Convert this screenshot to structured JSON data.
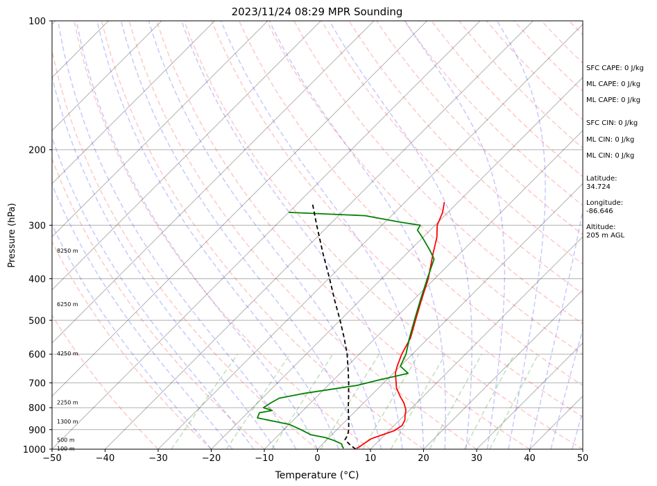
{
  "chart_data": {
    "type": "skew-t",
    "title": "2023/11/24 08:29 MPR Sounding",
    "xlabel": "Temperature (°C)",
    "ylabel": "Pressure (hPa)",
    "xlim": [
      -50,
      50
    ],
    "ylim": [
      1000,
      100
    ],
    "y_scale": "log",
    "x_ticks": [
      "−50",
      "−40",
      "−30",
      "−20",
      "−10",
      "0",
      "10",
      "20",
      "30",
      "40",
      "50"
    ],
    "x_tick_values": [
      -50,
      -40,
      -30,
      -20,
      -10,
      0,
      10,
      20,
      30,
      40,
      50
    ],
    "y_ticks": [
      "100",
      "200",
      "300",
      "400",
      "500",
      "600",
      "700",
      "800",
      "900",
      "1000"
    ],
    "y_tick_values": [
      100,
      200,
      300,
      400,
      500,
      600,
      700,
      800,
      900,
      1000
    ],
    "grid": "horizontal at pressure ticks",
    "height_labels": [
      {
        "text": "100 m",
        "p": 1000
      },
      {
        "text": "500 m",
        "p": 955
      },
      {
        "text": "1300 m",
        "p": 865
      },
      {
        "text": "2250 m",
        "p": 780
      },
      {
        "text": "4250 m",
        "p": 600
      },
      {
        "text": "6250 m",
        "p": 460
      },
      {
        "text": "8250 m",
        "p": 345
      }
    ],
    "series": [
      {
        "role": "temperature",
        "color": "#ff0000",
        "points": [
          [
            996,
            7.2
          ],
          [
            985,
            7.5
          ],
          [
            965,
            7.8
          ],
          [
            945,
            8.2
          ],
          [
            930,
            9.2
          ],
          [
            905,
            11.0
          ],
          [
            880,
            11.5
          ],
          [
            855,
            11.0
          ],
          [
            835,
            10.2
          ],
          [
            810,
            9.3
          ],
          [
            780,
            7.6
          ],
          [
            755,
            5.8
          ],
          [
            720,
            3.4
          ],
          [
            690,
            1.8
          ],
          [
            665,
            0.4
          ],
          [
            640,
            -0.6
          ],
          [
            600,
            -2.0
          ],
          [
            550,
            -3.4
          ],
          [
            500,
            -5.8
          ],
          [
            450,
            -8.4
          ],
          [
            400,
            -11.2
          ],
          [
            350,
            -15.0
          ],
          [
            320,
            -17.4
          ],
          [
            300,
            -19.6
          ],
          [
            280,
            -21.0
          ],
          [
            265,
            -22.6
          ]
        ]
      },
      {
        "role": "dewpoint",
        "color": "#008000",
        "points": [
          [
            996,
            4.8
          ],
          [
            982,
            4.0
          ],
          [
            972,
            3.6
          ],
          [
            955,
            1.6
          ],
          [
            940,
            -0.6
          ],
          [
            925,
            -4.0
          ],
          [
            900,
            -6.8
          ],
          [
            875,
            -10.0
          ],
          [
            845,
            -17.2
          ],
          [
            822,
            -17.8
          ],
          [
            812,
            -15.8
          ],
          [
            800,
            -18.0
          ],
          [
            780,
            -17.5
          ],
          [
            760,
            -16.8
          ],
          [
            740,
            -12.8
          ],
          [
            710,
            -4.6
          ],
          [
            690,
            -1.6
          ],
          [
            665,
            2.8
          ],
          [
            640,
            0.0
          ],
          [
            600,
            -1.2
          ],
          [
            550,
            -3.6
          ],
          [
            500,
            -6.0
          ],
          [
            450,
            -8.6
          ],
          [
            400,
            -11.4
          ],
          [
            360,
            -13.8
          ],
          [
            345,
            -16.0
          ],
          [
            322,
            -19.8
          ],
          [
            308,
            -22.4
          ],
          [
            300,
            -22.8
          ],
          [
            295,
            -27.2
          ],
          [
            285,
            -35.0
          ],
          [
            280,
            -50.0
          ]
        ]
      },
      {
        "role": "parcel",
        "color": "#000000",
        "style": "dashed",
        "points": [
          [
            1000,
            7.2
          ],
          [
            975,
            5.2
          ],
          [
            950,
            3.4
          ],
          [
            925,
            3.0
          ],
          [
            900,
            2.2
          ],
          [
            850,
            0.2
          ],
          [
            800,
            -2.0
          ],
          [
            750,
            -4.2
          ],
          [
            700,
            -6.6
          ],
          [
            650,
            -9.3
          ],
          [
            600,
            -12.3
          ],
          [
            550,
            -15.9
          ],
          [
            500,
            -20.0
          ],
          [
            450,
            -24.7
          ],
          [
            400,
            -29.8
          ],
          [
            350,
            -35.7
          ],
          [
            300,
            -42.3
          ],
          [
            265,
            -47.5
          ]
        ]
      }
    ],
    "background_lines": {
      "isotherm_color": "#000000",
      "dry_adiabat_color": "#ff0000",
      "moist_adiabat_color": "#0000ff",
      "mixing_ratio_color": "#008000"
    }
  },
  "sidebar": {
    "sfc_cape": "SFC CAPE: 0 J/kg",
    "ml_cape_1": "ML CAPE: 0 J/kg",
    "ml_cape_2": "ML CAPE: 0 J/kg",
    "sfc_cin": "SFC CIN: 0 J/kg",
    "ml_cin_1": "ML CIN: 0 J/kg",
    "ml_cin_2": "ML CIN: 0 J/kg",
    "latitude": "Latitude:\n34.724",
    "longitude": "Longitude:\n-86.646",
    "altitude": "Altitude:\n205 m AGL"
  }
}
